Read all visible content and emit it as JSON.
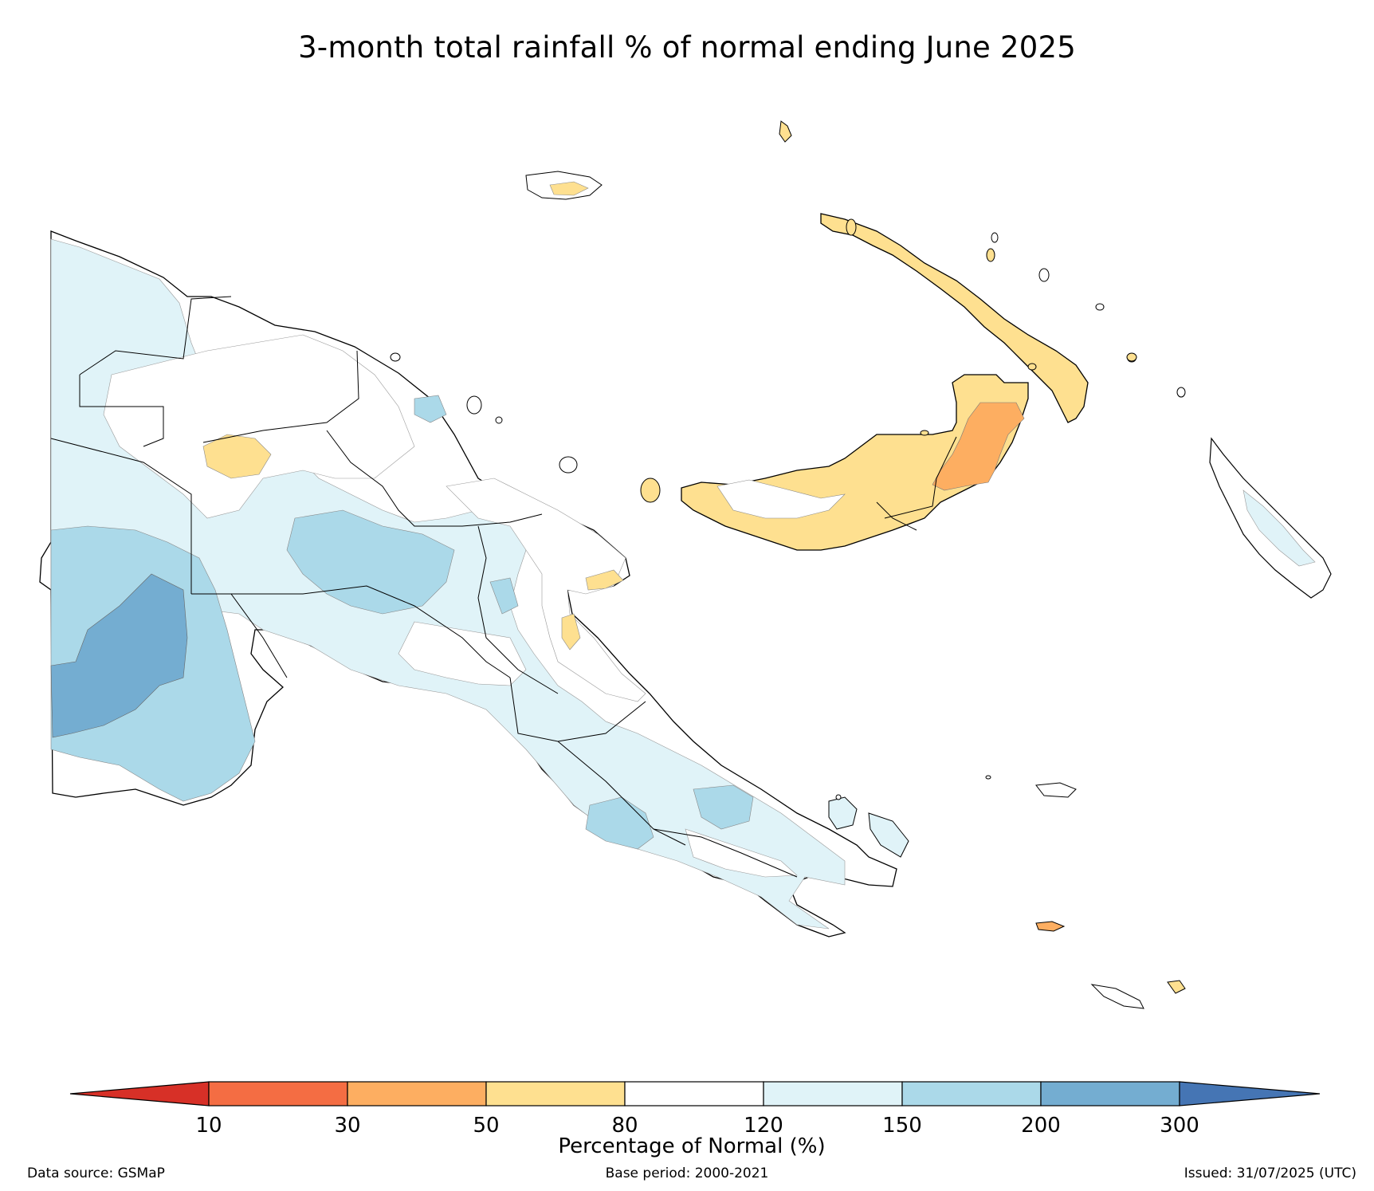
{
  "title": "3-month total rainfall % of normal ending June 2025",
  "legend": {
    "label": "Percentage of Normal (%)",
    "ticks": [
      "10",
      "30",
      "50",
      "80",
      "120",
      "150",
      "200",
      "300"
    ],
    "bins": [
      {
        "range": "<10",
        "color": "#d73027"
      },
      {
        "range": "10-30",
        "color": "#f46d43"
      },
      {
        "range": "30-50",
        "color": "#fdae61"
      },
      {
        "range": "50-80",
        "color": "#fee090"
      },
      {
        "range": "80-120",
        "color": "#ffffff"
      },
      {
        "range": "120-150",
        "color": "#e0f3f8"
      },
      {
        "range": "150-200",
        "color": "#abd9e9"
      },
      {
        "range": "200-300",
        "color": "#74add1"
      },
      {
        "range": ">300",
        "color": "#4575b4"
      }
    ]
  },
  "footer": {
    "source": "Data source: GSMaP",
    "base_period": "Base period: 2000-2021",
    "issued": "Issued: 31/07/2025 (UTC)"
  },
  "map": {
    "region": "Papua New Guinea",
    "regions_summary": [
      {
        "area": "Western Province (south-west)",
        "category": "200-300"
      },
      {
        "area": "Southern Highlands / Gulf",
        "category": "150-200"
      },
      {
        "area": "Central / Oro / Milne Bay",
        "category": "120-150"
      },
      {
        "area": "East New Britain",
        "category": "30-50"
      },
      {
        "area": "West New Britain / New Ireland / Manus",
        "category": "50-80"
      },
      {
        "area": "Sepik / Madang",
        "category": "80-120"
      }
    ]
  }
}
